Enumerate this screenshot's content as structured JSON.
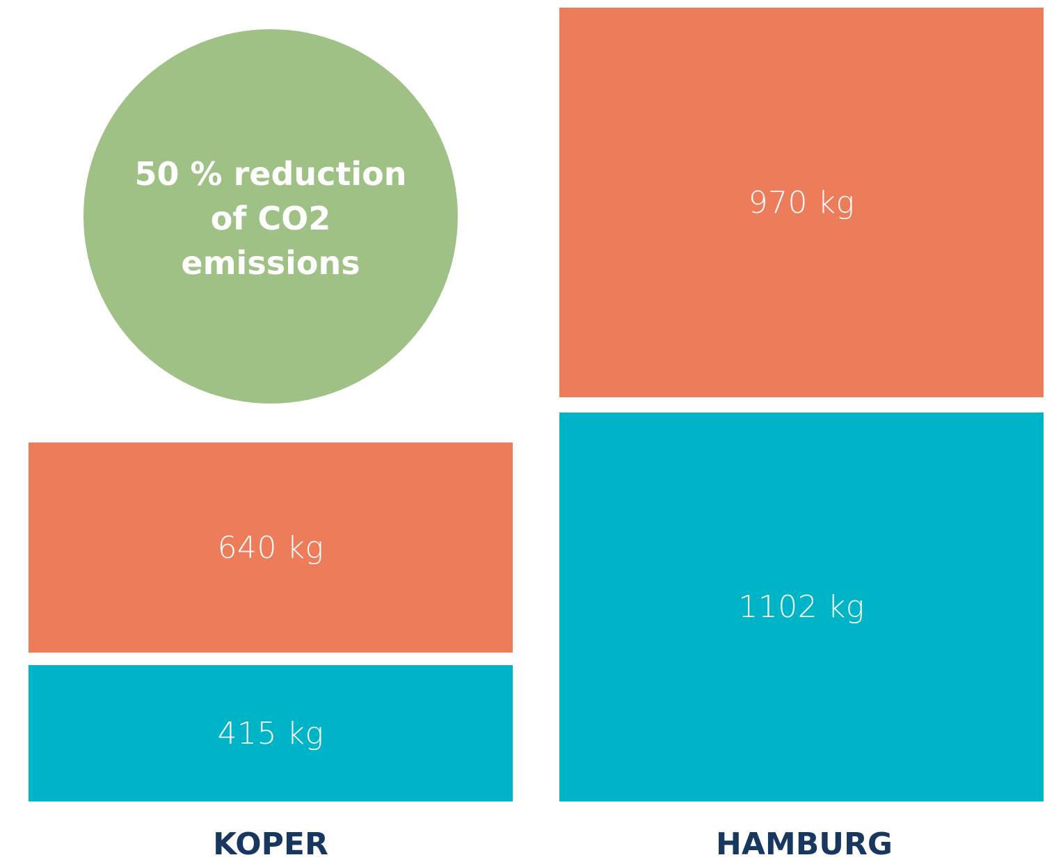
{
  "colors": {
    "orange": "#ED7D5A",
    "teal": "#00B4C8",
    "green": "#A0C185",
    "label": "#17375E"
  },
  "callout": {
    "text": "50 % reduction of CO2 emissions"
  },
  "chart_data": {
    "type": "bar",
    "stacked": true,
    "categories": [
      "KOPER",
      "HAMBURG"
    ],
    "series": [
      {
        "color": "#00B4C8",
        "values": [
          415,
          1102
        ],
        "labels": [
          "415 kg",
          "1102 kg"
        ]
      },
      {
        "color": "#ED7D5A",
        "values": [
          640,
          970
        ],
        "labels": [
          "640 kg",
          "970 kg"
        ]
      }
    ],
    "unit": "kg"
  }
}
